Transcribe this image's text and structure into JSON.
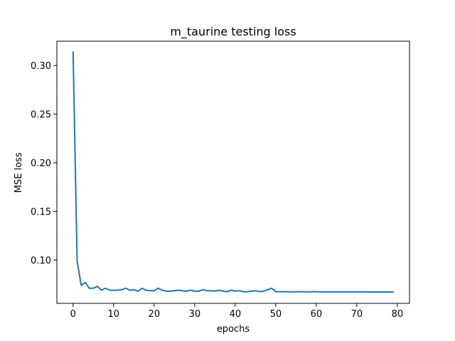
{
  "chart_data": {
    "type": "line",
    "title": "m_taurine testing loss",
    "xlabel": "epochs",
    "ylabel": "MSE loss",
    "xlim": [
      -4,
      83
    ],
    "ylim": [
      0.0555,
      0.325
    ],
    "xticks": [
      0,
      10,
      20,
      30,
      40,
      50,
      60,
      70,
      80
    ],
    "yticks": [
      0.1,
      0.15,
      0.2,
      0.25,
      0.3
    ],
    "xtick_labels": [
      "0",
      "10",
      "20",
      "30",
      "40",
      "50",
      "60",
      "70",
      "80"
    ],
    "ytick_labels": [
      "0.10",
      "0.15",
      "0.20",
      "0.25",
      "0.30"
    ],
    "grid": false,
    "legend": "none",
    "series": [
      {
        "color": "#1f77b4",
        "x": [
          0,
          1,
          2,
          3,
          4,
          5,
          6,
          7,
          8,
          9,
          10,
          11,
          12,
          13,
          14,
          15,
          16,
          17,
          18,
          19,
          20,
          21,
          22,
          23,
          24,
          25,
          26,
          27,
          28,
          29,
          30,
          31,
          32,
          33,
          34,
          35,
          36,
          37,
          38,
          39,
          40,
          41,
          42,
          43,
          44,
          45,
          46,
          47,
          48,
          49,
          50,
          51,
          52,
          53,
          54,
          55,
          56,
          57,
          58,
          59,
          60,
          61,
          62,
          63,
          64,
          65,
          66,
          67,
          68,
          69,
          70,
          71,
          72,
          73,
          74,
          75,
          76,
          77,
          78,
          79
        ],
        "values": [
          0.314,
          0.099,
          0.074,
          0.077,
          0.071,
          0.071,
          0.073,
          0.069,
          0.071,
          0.069,
          0.069,
          0.069,
          0.0695,
          0.071,
          0.069,
          0.0695,
          0.068,
          0.071,
          0.069,
          0.0685,
          0.0685,
          0.071,
          0.069,
          0.068,
          0.068,
          0.0685,
          0.069,
          0.0685,
          0.068,
          0.069,
          0.068,
          0.068,
          0.0695,
          0.0685,
          0.0685,
          0.068,
          0.069,
          0.068,
          0.0675,
          0.069,
          0.068,
          0.0685,
          0.0675,
          0.0675,
          0.068,
          0.0685,
          0.0675,
          0.068,
          0.0695,
          0.071,
          0.0675,
          0.0675,
          0.0675,
          0.0675,
          0.0673,
          0.0675,
          0.0675,
          0.0675,
          0.0673,
          0.0675,
          0.0675,
          0.0673,
          0.0673,
          0.0673,
          0.0673,
          0.0673,
          0.0673,
          0.0673,
          0.0673,
          0.0673,
          0.0673,
          0.0673,
          0.0673,
          0.0672,
          0.0673,
          0.0672,
          0.0672,
          0.0672,
          0.0672,
          0.0672
        ]
      }
    ]
  }
}
